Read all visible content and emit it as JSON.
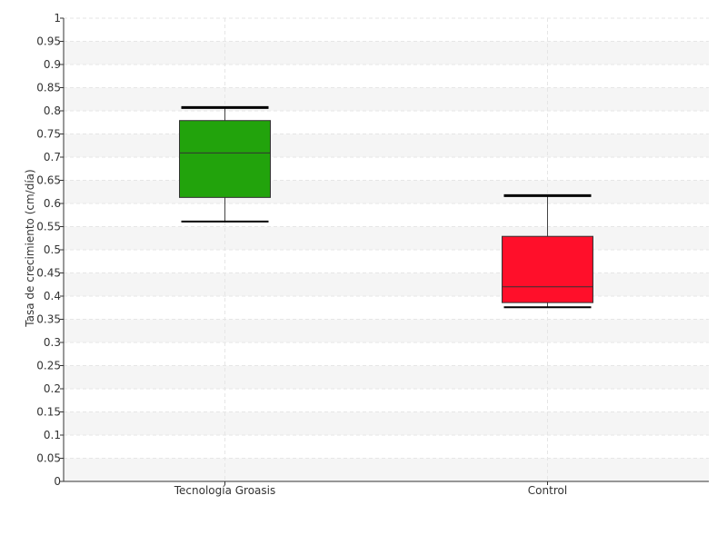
{
  "chart_data": {
    "type": "box",
    "ylabel": "Tasa de crecimiento (cm/día)",
    "ylim": [
      0,
      1
    ],
    "y_ticks": [
      "0",
      "0.05",
      "0.1",
      "0.15",
      "0.2",
      "0.25",
      "0.3",
      "0.35",
      "0.4",
      "0.45",
      "0.5",
      "0.55",
      "0.6",
      "0.65",
      "0.7",
      "0.75",
      "0.8",
      "0.85",
      "0.9",
      "0.95",
      "1"
    ],
    "categories": [
      "Tecnología Groasis",
      "Control"
    ],
    "boxes": [
      {
        "category": "Tecnología Groasis",
        "min": 0.561,
        "q1": 0.613,
        "median": 0.709,
        "q3": 0.779,
        "max": 0.807,
        "color": "#22a30c"
      },
      {
        "category": "Control",
        "min": 0.376,
        "q1": 0.386,
        "median": 0.42,
        "q3": 0.529,
        "max": 0.617,
        "color": "#ff0f2a"
      }
    ],
    "grid": true,
    "legend": "none"
  }
}
